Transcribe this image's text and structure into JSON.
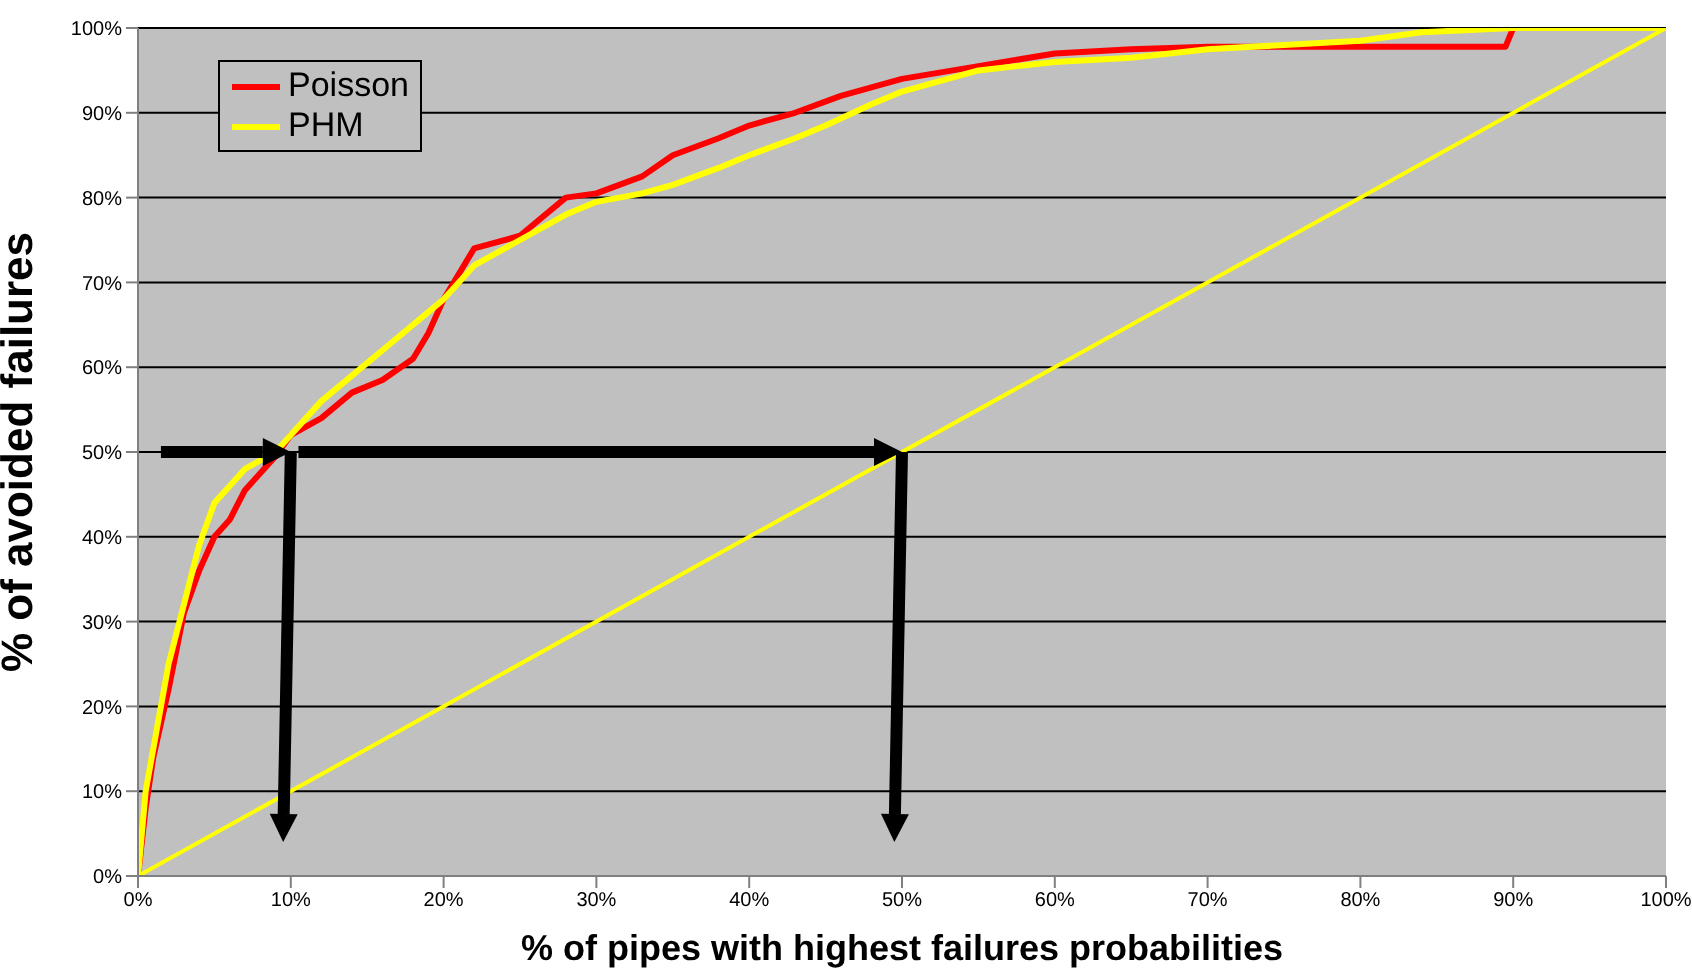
{
  "chart_data": {
    "type": "line",
    "xlabel": "% of pipes with highest failures probabilities",
    "ylabel": "% of avoided failures",
    "xlim": [
      0,
      100
    ],
    "ylim": [
      0,
      100
    ],
    "xticks": [
      {
        "value": 0,
        "label": "0%"
      },
      {
        "value": 10,
        "label": "10%"
      },
      {
        "value": 20,
        "label": "20%"
      },
      {
        "value": 30,
        "label": "30%"
      },
      {
        "value": 40,
        "label": "40%"
      },
      {
        "value": 50,
        "label": "50%"
      },
      {
        "value": 60,
        "label": "60%"
      },
      {
        "value": 70,
        "label": "70%"
      },
      {
        "value": 80,
        "label": "80%"
      },
      {
        "value": 90,
        "label": "90%"
      },
      {
        "value": 100,
        "label": "100%"
      }
    ],
    "yticks": [
      {
        "value": 0,
        "label": "0%"
      },
      {
        "value": 10,
        "label": "10%"
      },
      {
        "value": 20,
        "label": "20%"
      },
      {
        "value": 30,
        "label": "30%"
      },
      {
        "value": 40,
        "label": "40%"
      },
      {
        "value": 50,
        "label": "50%"
      },
      {
        "value": 60,
        "label": "60%"
      },
      {
        "value": 70,
        "label": "70%"
      },
      {
        "value": 80,
        "label": "80%"
      },
      {
        "value": 90,
        "label": "90%"
      },
      {
        "value": 100,
        "label": "100%"
      }
    ],
    "grid": "y",
    "legend": "top left",
    "marker": "none",
    "line_style": "solid",
    "series": [
      {
        "name": "Poisson",
        "color": "#ff0000",
        "x": [
          0,
          0.5,
          1,
          2,
          3,
          4,
          5,
          6,
          7,
          8,
          9,
          10,
          12,
          14,
          16,
          18,
          19,
          20,
          22,
          25,
          28,
          30,
          33,
          35,
          38,
          40,
          43,
          46,
          50,
          55,
          60,
          65,
          70,
          80,
          89.5,
          90
        ],
        "values": [
          0,
          8,
          14,
          22,
          31,
          36,
          40,
          42,
          45.5,
          47.5,
          49.5,
          52,
          54,
          57,
          58.5,
          61,
          64,
          68,
          74,
          75.5,
          80,
          80.5,
          82.5,
          85,
          87,
          88.5,
          90,
          92,
          94,
          95.5,
          97,
          97.5,
          97.8,
          97.8,
          97.8,
          100
        ]
      },
      {
        "name": "PHM",
        "color": "#ffff00",
        "x": [
          0,
          0.5,
          1,
          2,
          3,
          4,
          5,
          6,
          7,
          9,
          10,
          12,
          14,
          16,
          18,
          20,
          22,
          25,
          28,
          30,
          33,
          35,
          38,
          40,
          43,
          45,
          48,
          50,
          55,
          60,
          65,
          70,
          75,
          80,
          84,
          90,
          100
        ],
        "values": [
          0,
          10,
          15,
          25,
          32,
          39,
          44,
          46,
          48,
          50,
          52,
          56,
          59,
          62,
          65,
          68,
          72,
          75,
          78,
          79.5,
          80.5,
          81.5,
          83.5,
          85,
          87,
          88.5,
          91,
          92.5,
          95,
          96,
          96.5,
          97.5,
          98,
          98.5,
          99.5,
          100,
          100
        ]
      },
      {
        "color": "#ffff00",
        "x": [
          0,
          100
        ],
        "values": [
          0,
          100
        ]
      }
    ]
  }
}
